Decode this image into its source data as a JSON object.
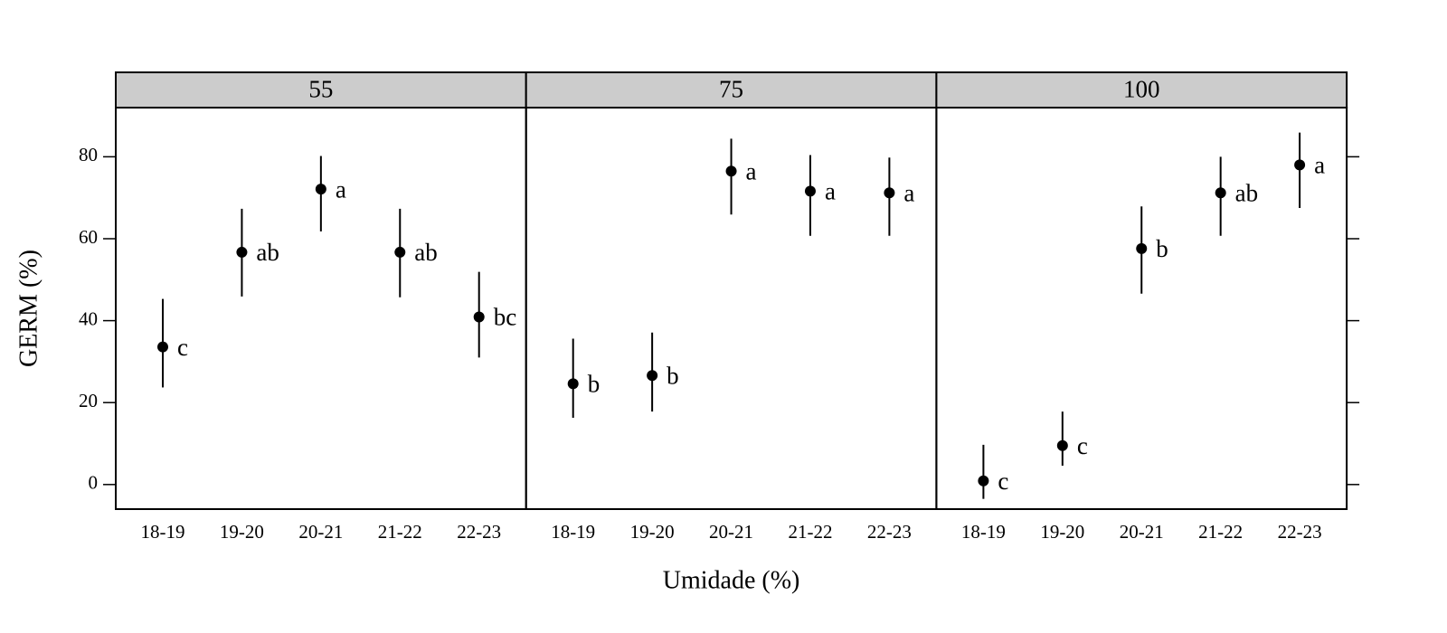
{
  "chart_data": [
    {
      "type": "errorbar",
      "title": "55",
      "ylabel": "GERM (%)",
      "categories": [
        "18-19",
        "19-20",
        "20-21",
        "21-22",
        "22-23"
      ],
      "values": [
        33.6,
        56.7,
        72.1,
        56.7,
        40.9
      ],
      "lower": [
        23.7,
        45.9,
        61.8,
        45.7,
        31.0
      ],
      "upper": [
        45.3,
        67.3,
        80.2,
        67.3,
        51.9
      ],
      "labels": [
        "c",
        "ab",
        "a",
        "ab",
        "bc"
      ],
      "color": "#000000",
      "ylim": [
        -6,
        92
      ],
      "yticks": [
        0,
        20,
        40,
        60,
        80
      ]
    },
    {
      "type": "errorbar",
      "title": "75",
      "xlabel": "Umidade (%)",
      "categories": [
        "18-19",
        "19-20",
        "20-21",
        "21-22",
        "22-23"
      ],
      "values": [
        24.6,
        26.6,
        76.5,
        71.6,
        71.2
      ],
      "lower": [
        16.3,
        17.8,
        65.9,
        60.7,
        60.7
      ],
      "upper": [
        35.6,
        37.1,
        84.4,
        80.4,
        79.8
      ],
      "labels": [
        "b",
        "b",
        "a",
        "a",
        "a"
      ],
      "color": "#000000"
    },
    {
      "type": "errorbar",
      "title": "100",
      "categories": [
        "18-19",
        "19-20",
        "20-21",
        "21-22",
        "22-23"
      ],
      "values": [
        0.9,
        9.5,
        57.6,
        71.2,
        78.0
      ],
      "lower": [
        -3.5,
        4.6,
        46.6,
        60.7,
        67.5
      ],
      "upper": [
        9.7,
        17.8,
        67.9,
        80.0,
        85.9
      ],
      "labels": [
        "c",
        "c",
        "b",
        "ab",
        "a"
      ],
      "color": "#000000"
    }
  ]
}
